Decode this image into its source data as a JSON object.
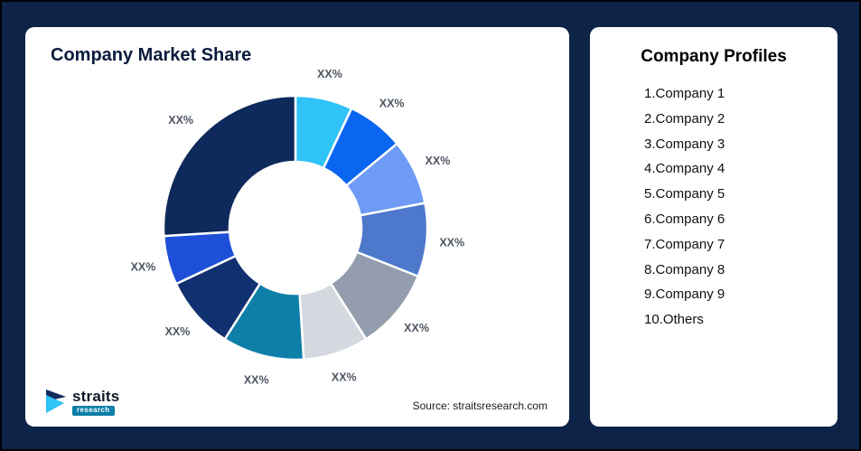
{
  "left_card": {
    "title": "Company Market Share",
    "source": "Source: straitsresearch.com",
    "logo": {
      "brand": "straits",
      "sub": "research"
    }
  },
  "right_card": {
    "title": "Company Profiles",
    "items": [
      "1.Company 1",
      "2.Company 2",
      "3.Company 3",
      "4.Company 4",
      "5.Company 5",
      "6.Company 6",
      "7.Company 7",
      "8.Company 8",
      "9.Company 9",
      "10.Others"
    ]
  },
  "chart_data": {
    "type": "pie",
    "subtype": "donut",
    "title": "Company Market Share",
    "labels": [
      "XX%",
      "XX%",
      "XX%",
      "XX%",
      "XX%",
      "XX%",
      "XX%",
      "XX%",
      "XX%",
      "XX%"
    ],
    "values": [
      7,
      7,
      8,
      9,
      10,
      8,
      10,
      9,
      6,
      26
    ],
    "colors": [
      "#2fc3f7",
      "#0a66f0",
      "#6d9bf5",
      "#4d78cc",
      "#939dad",
      "#d4d9e0",
      "#0e7fa8",
      "#103070",
      "#1d4fd8",
      "#0e2a5c"
    ],
    "start_angle_deg": 0,
    "direction": "clockwise",
    "legend_position": "none",
    "grid": false
  },
  "theme": {
    "background": "#0e2348",
    "card_bg": "#ffffff",
    "title_color": "#0b1b3c",
    "label_color": "#4d5561",
    "accent_teal": "#0e7fa8",
    "accent_cyan": "#2fc3f7"
  }
}
